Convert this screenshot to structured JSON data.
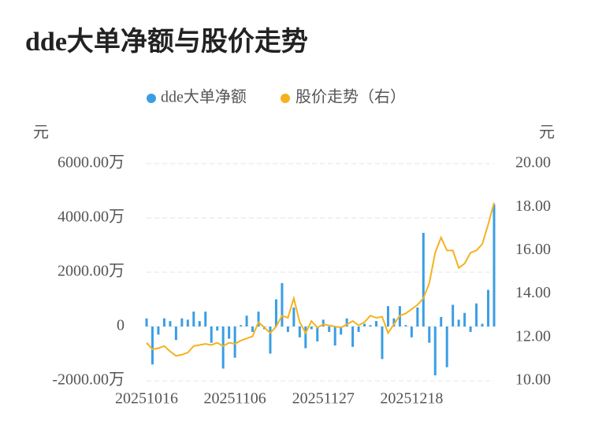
{
  "chart_data": {
    "type": "bar-line",
    "title": "dde大单净额与股价走势",
    "ylabel": "元",
    "y2label": "元",
    "categories": [
      "20251016",
      null,
      null,
      null,
      null,
      null,
      null,
      null,
      null,
      null,
      null,
      null,
      null,
      null,
      null,
      "20251106",
      null,
      null,
      null,
      null,
      null,
      null,
      null,
      null,
      null,
      null,
      null,
      null,
      null,
      null,
      "20251127",
      null,
      null,
      null,
      null,
      null,
      null,
      null,
      null,
      null,
      null,
      null,
      null,
      null,
      null,
      "20251218",
      null,
      null,
      null,
      null,
      null,
      null,
      null,
      null,
      null,
      null,
      null,
      null,
      null,
      null
    ],
    "series": [
      {
        "name": "dde大单净额",
        "type": "bar",
        "color": "#3a9ee4",
        "values": [
          300,
          -1400,
          -300,
          300,
          200,
          -500,
          300,
          250,
          550,
          200,
          550,
          -600,
          -150,
          -1550,
          -450,
          -1150,
          50,
          400,
          -200,
          550,
          -100,
          -1000,
          1000,
          1600,
          -200,
          700,
          -400,
          -800,
          -100,
          -550,
          250,
          -200,
          -700,
          -300,
          300,
          -750,
          -200,
          100,
          50,
          200,
          -1200,
          750,
          300,
          750,
          50,
          -400,
          700,
          3450,
          -600,
          -1800,
          350,
          -1500,
          800,
          250,
          500,
          -200,
          850,
          100,
          1350,
          4500
        ]
      },
      {
        "name": "股价走势（右）",
        "type": "line",
        "axis": "y2",
        "color": "#f5b21e",
        "values": [
          11.75,
          11.45,
          11.5,
          11.6,
          11.35,
          11.15,
          11.2,
          11.3,
          11.6,
          11.65,
          11.7,
          11.65,
          11.75,
          11.6,
          11.75,
          11.7,
          11.85,
          11.95,
          12.05,
          12.7,
          12.45,
          12.2,
          12.5,
          13.0,
          12.9,
          13.8,
          12.7,
          12.2,
          12.75,
          12.45,
          12.6,
          12.55,
          12.5,
          12.45,
          12.6,
          12.75,
          12.55,
          12.7,
          13.0,
          12.9,
          12.95,
          12.2,
          12.6,
          13.0,
          13.1,
          13.3,
          13.5,
          13.8,
          14.5,
          15.9,
          16.6,
          16.0,
          16.0,
          15.2,
          15.4,
          15.9,
          16.0,
          16.3,
          17.2,
          18.2
        ]
      }
    ],
    "ylim": [
      -2000,
      6000
    ],
    "yticks": [
      {
        "value": -2000,
        "label": "-2000.00万"
      },
      0,
      {
        "value": 2000,
        "label": "2000.00万"
      },
      {
        "value": 4000,
        "label": "4000.00万"
      },
      {
        "value": 6000,
        "label": "6000.00万"
      }
    ],
    "y2lim": [
      10,
      20
    ],
    "y2ticks": [
      {
        "value": 10,
        "label": "10.00"
      },
      {
        "value": 12,
        "label": "12.00"
      },
      {
        "value": 14,
        "label": "14.00"
      },
      {
        "value": 16,
        "label": "16.00"
      },
      {
        "value": 18,
        "label": "18.00"
      },
      {
        "value": 20,
        "label": "20.00"
      }
    ],
    "grid": true
  }
}
